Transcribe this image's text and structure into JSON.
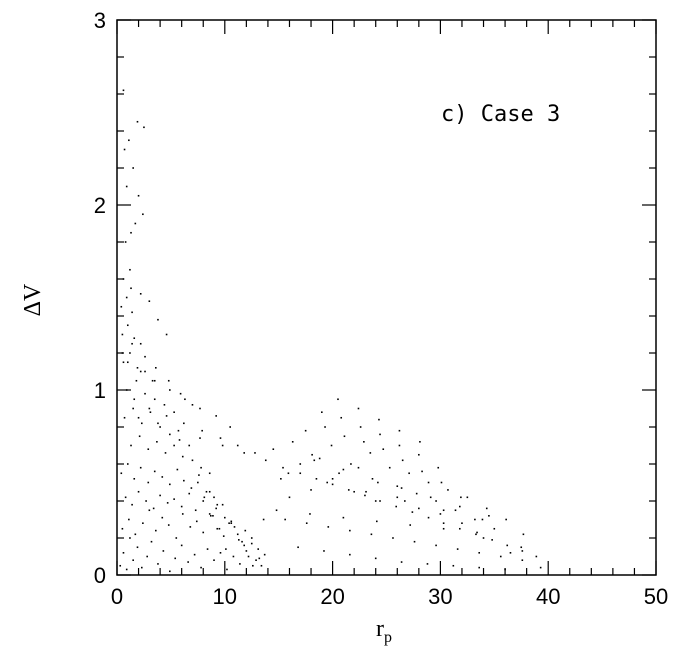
{
  "chart_data": {
    "type": "scatter",
    "title": "",
    "annotation": "c) Case 3",
    "xlabel": "r",
    "xlabel_sub": "p",
    "ylabel": "ΔV",
    "xlim": [
      0,
      50
    ],
    "ylim": [
      0,
      3
    ],
    "xticks": [
      0,
      10,
      20,
      30,
      40,
      50
    ],
    "yticks": [
      0,
      1,
      2,
      3
    ],
    "xtick_labels": [
      "0",
      "10",
      "20",
      "30",
      "40",
      "50"
    ],
    "ytick_labels": [
      "0",
      "1",
      "2",
      "3"
    ],
    "grid": false,
    "colors": {
      "points": "#000000",
      "axes": "#000000"
    },
    "series": [
      {
        "x": [
          0.3,
          0.6,
          0.9,
          1.2,
          1.5,
          1.9,
          2.3,
          2.8,
          3.2,
          3.8,
          4.3,
          4.9,
          5.4,
          6.0,
          6.6,
          7.2,
          7.8,
          8.4,
          9.0,
          9.6,
          10.2,
          10.8,
          11.4,
          12.0,
          12.6,
          13.2,
          13.7,
          0.5,
          1.1,
          1.7,
          2.4,
          3.0,
          3.6,
          4.2,
          4.8,
          5.5,
          6.1,
          6.8,
          7.4,
          8.0,
          8.7,
          9.3,
          9.9,
          10.6,
          11.3,
          11.9,
          12.5,
          13.1,
          0.8,
          1.4,
          2.0,
          2.7,
          3.4,
          4.0,
          4.7,
          5.3,
          6.0,
          6.7,
          7.3,
          8.0,
          8.6,
          9.3,
          10.0,
          10.6,
          0.4,
          1.0,
          1.6,
          2.2,
          2.9,
          3.5,
          4.2,
          4.9,
          5.6,
          6.2,
          6.9,
          7.6,
          8.3,
          9.0,
          1.3,
          2.1,
          2.9,
          3.7,
          4.5,
          5.3,
          6.1,
          7.0,
          7.8,
          8.6,
          0.7,
          1.5,
          2.3,
          3.1,
          4.0,
          4.9,
          5.8,
          6.7,
          0.9,
          1.8,
          2.6,
          3.5,
          4.4,
          5.3,
          0.6,
          1.2,
          1.9,
          2.6,
          3.3,
          0.5,
          1.0,
          1.6,
          2.2,
          0.4,
          0.9,
          1.4,
          0.6,
          1.2,
          0.8,
          1.3,
          1.7,
          2.4,
          2.0,
          0.9,
          1.5,
          0.7,
          1.1,
          1.9,
          2.5,
          0.6,
          1.3,
          2.2,
          3.0,
          3.8,
          4.6,
          0.5,
          1.4,
          2.6,
          3.6,
          4.8,
          5.9,
          7.0,
          1.0,
          2.2,
          3.5,
          4.9,
          6.3,
          7.7,
          9.2,
          10.5,
          1.6,
          3.0,
          4.6,
          6.2,
          7.9,
          9.6,
          11.2,
          12.8,
          2.0,
          3.8,
          5.7,
          7.7,
          9.8,
          11.8,
          13.8,
          15.4,
          17.0,
          18.5,
          20.0,
          21.5,
          23.0,
          24.4,
          25.9,
          27.4,
          28.9,
          30.3,
          31.8,
          33.3,
          34.8,
          36.2,
          37.6,
          38.9,
          14.5,
          16.3,
          18.1,
          19.9,
          21.7,
          23.5,
          25.3,
          27.1,
          28.9,
          30.7,
          32.5,
          34.3,
          36.1,
          37.7,
          15.2,
          17.0,
          18.8,
          20.6,
          22.4,
          24.2,
          26.0,
          27.8,
          29.6,
          31.4,
          33.2,
          35.0,
          16.0,
          18.0,
          20.0,
          22.0,
          24.0,
          26.0,
          28.0,
          30.0,
          32.0,
          34.0,
          17.5,
          19.3,
          21.1,
          22.9,
          24.7,
          26.5,
          28.3,
          30.1,
          31.9,
          19.0,
          20.8,
          22.6,
          24.4,
          26.2,
          28.0,
          29.8,
          20.5,
          22.4,
          24.3,
          26.2,
          28.1,
          15.6,
          17.6,
          19.6,
          21.6,
          23.6,
          25.6,
          27.6,
          29.6,
          31.6,
          33.6,
          35.6,
          37.6,
          16.8,
          19.2,
          21.6,
          24.0,
          26.4,
          28.8,
          31.2,
          33.6,
          36.0,
          18.3,
          21.0,
          23.7,
          26.4,
          29.1,
          31.8,
          34.5,
          14.8,
          17.9,
          21.0,
          24.1,
          27.2,
          30.3,
          33.4,
          36.5,
          39.3,
          15.9,
          19.5,
          23.1,
          26.7,
          30.3,
          33.9,
          37.5,
          12.5,
          13.6,
          11.2,
          9.8,
          10.4,
          11.8,
          12.9,
          13.4,
          8.6,
          9.2,
          10.9,
          11.6,
          12.2,
          7.5,
          8.1,
          8.9,
          9.5,
          10.1
        ],
        "y": [
          0.05,
          0.12,
          0.03,
          0.2,
          0.08,
          0.15,
          0.04,
          0.1,
          0.18,
          0.06,
          0.13,
          0.02,
          0.09,
          0.16,
          0.07,
          0.11,
          0.04,
          0.14,
          0.08,
          0.12,
          0.03,
          0.1,
          0.06,
          0.13,
          0.05,
          0.09,
          0.11,
          0.25,
          0.3,
          0.22,
          0.28,
          0.35,
          0.24,
          0.31,
          0.27,
          0.2,
          0.33,
          0.26,
          0.29,
          0.23,
          0.32,
          0.25,
          0.21,
          0.28,
          0.19,
          0.24,
          0.17,
          0.14,
          0.42,
          0.38,
          0.45,
          0.4,
          0.36,
          0.43,
          0.39,
          0.41,
          0.37,
          0.44,
          0.35,
          0.4,
          0.33,
          0.38,
          0.31,
          0.29,
          0.55,
          0.6,
          0.52,
          0.58,
          0.5,
          0.56,
          0.53,
          0.49,
          0.57,
          0.51,
          0.47,
          0.54,
          0.45,
          0.42,
          0.7,
          0.75,
          0.68,
          0.72,
          0.66,
          0.7,
          0.64,
          0.62,
          0.58,
          0.55,
          0.85,
          0.9,
          0.82,
          0.88,
          0.8,
          0.76,
          0.73,
          0.7,
          1.0,
          1.05,
          0.98,
          0.95,
          0.92,
          0.88,
          1.15,
          1.2,
          1.12,
          1.1,
          1.05,
          1.3,
          1.35,
          1.28,
          1.25,
          1.45,
          1.5,
          1.42,
          1.6,
          1.65,
          1.8,
          1.85,
          1.9,
          1.95,
          2.05,
          2.1,
          2.2,
          2.3,
          2.35,
          2.45,
          2.42,
          2.62,
          1.55,
          1.52,
          1.48,
          1.38,
          1.3,
          1.2,
          1.25,
          1.18,
          1.12,
          1.05,
          0.98,
          0.92,
          1.15,
          1.1,
          1.05,
          1.0,
          0.95,
          0.9,
          0.86,
          0.8,
          0.95,
          0.9,
          0.86,
          0.82,
          0.78,
          0.74,
          0.7,
          0.66,
          0.85,
          0.82,
          0.78,
          0.74,
          0.7,
          0.66,
          0.62,
          0.58,
          0.55,
          0.52,
          0.49,
          0.46,
          0.43,
          0.4,
          0.37,
          0.34,
          0.31,
          0.28,
          0.25,
          0.22,
          0.19,
          0.16,
          0.13,
          0.1,
          0.68,
          0.72,
          0.65,
          0.7,
          0.6,
          0.66,
          0.58,
          0.55,
          0.5,
          0.46,
          0.42,
          0.36,
          0.3,
          0.22,
          0.52,
          0.6,
          0.63,
          0.55,
          0.58,
          0.5,
          0.48,
          0.44,
          0.4,
          0.35,
          0.3,
          0.25,
          0.42,
          0.46,
          0.52,
          0.45,
          0.4,
          0.42,
          0.36,
          0.33,
          0.28,
          0.2,
          0.78,
          0.8,
          0.75,
          0.72,
          0.68,
          0.62,
          0.56,
          0.5,
          0.42,
          0.88,
          0.85,
          0.8,
          0.76,
          0.7,
          0.65,
          0.58,
          0.95,
          0.9,
          0.84,
          0.78,
          0.72,
          0.3,
          0.28,
          0.26,
          0.24,
          0.22,
          0.2,
          0.18,
          0.16,
          0.14,
          0.12,
          0.1,
          0.08,
          0.15,
          0.13,
          0.11,
          0.09,
          0.07,
          0.06,
          0.05,
          0.04,
          0.03,
          0.62,
          0.57,
          0.52,
          0.47,
          0.42,
          0.37,
          0.32,
          0.35,
          0.33,
          0.31,
          0.29,
          0.27,
          0.25,
          0.23,
          0.12,
          0.04,
          0.55,
          0.5,
          0.45,
          0.4,
          0.35,
          0.3,
          0.15,
          0.2,
          0.3,
          0.22,
          0.38,
          0.28,
          0.16,
          0.08,
          0.05,
          0.45,
          0.36,
          0.26,
          0.18,
          0.1,
          0.5,
          0.42,
          0.32,
          0.25,
          0.14
        ]
      }
    ]
  }
}
